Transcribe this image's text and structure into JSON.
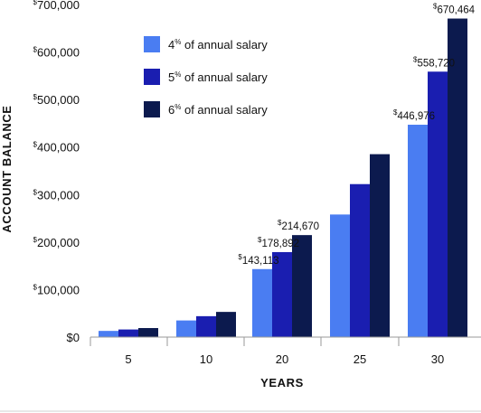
{
  "chart_data": {
    "type": "bar",
    "title": "",
    "xlabel": "YEARS",
    "ylabel": "ACCOUNT BALANCE",
    "categories": [
      "5",
      "10",
      "20",
      "25",
      "30"
    ],
    "ylim": [
      0,
      700000
    ],
    "yticks": [
      {
        "value": 0,
        "label": "$0",
        "sup": ""
      },
      {
        "value": 100000,
        "label": "100,000",
        "sup": "$"
      },
      {
        "value": 200000,
        "label": "200,000",
        "sup": "$"
      },
      {
        "value": 300000,
        "label": "300,000",
        "sup": "$"
      },
      {
        "value": 400000,
        "label": "400,000",
        "sup": "$"
      },
      {
        "value": 500000,
        "label": "500,000",
        "sup": "$"
      },
      {
        "value": 600000,
        "label": "600,000",
        "sup": "$"
      },
      {
        "value": 700000,
        "label": "700,000",
        "sup": "$"
      }
    ],
    "series": [
      {
        "name": "4% of annual salary",
        "name_pre": "4",
        "name_sup": "%",
        "name_post": " of annual salary",
        "color": "#4a7df2",
        "values": [
          13000,
          35000,
          143113,
          258000,
          446976
        ]
      },
      {
        "name": "5% of annual salary",
        "name_pre": "5",
        "name_sup": "%",
        "name_post": " of annual salary",
        "color": "#1a1eb0",
        "values": [
          16000,
          44000,
          178892,
          322000,
          558720
        ]
      },
      {
        "name": "6% of annual salary",
        "name_pre": "6",
        "name_sup": "%",
        "name_post": " of annual salary",
        "color": "#0c1a4e",
        "values": [
          19000,
          53000,
          214670,
          385000,
          670464
        ]
      }
    ],
    "data_labels": [
      {
        "category": "20",
        "series": 0,
        "sup": "$",
        "text": "143,113"
      },
      {
        "category": "20",
        "series": 1,
        "sup": "$",
        "text": "178,892"
      },
      {
        "category": "20",
        "series": 2,
        "sup": "$",
        "text": "214,670"
      },
      {
        "category": "30",
        "series": 0,
        "sup": "$",
        "text": "446,976"
      },
      {
        "category": "30",
        "series": 1,
        "sup": "$",
        "text": "558,720"
      },
      {
        "category": "30",
        "series": 2,
        "sup": "$",
        "text": "670,464"
      }
    ],
    "legend": "top-left",
    "grid": false
  }
}
